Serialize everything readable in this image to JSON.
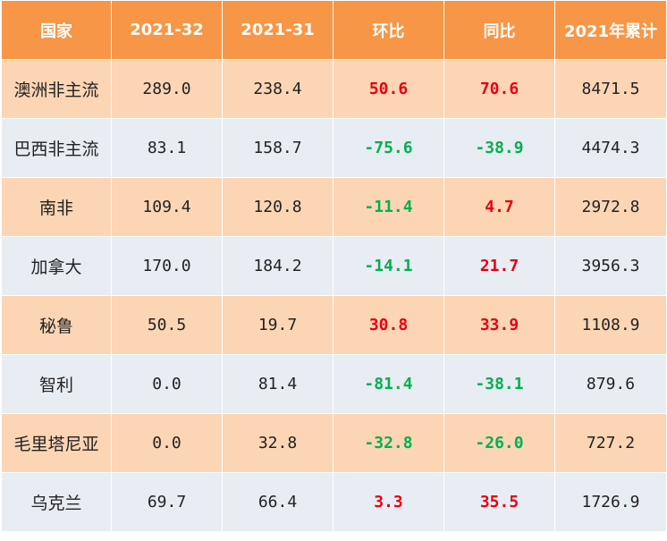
{
  "chart_data": {
    "type": "table",
    "columns": [
      "国家",
      "2021-32",
      "2021-31",
      "环比",
      "同比",
      "2021年累计"
    ],
    "rows": [
      {
        "country": "澳洲非主流",
        "w32": "289.0",
        "w31": "238.4",
        "wow": "50.6",
        "yoy": "70.6",
        "ytd": "8471.5"
      },
      {
        "country": "巴西非主流",
        "w32": "83.1",
        "w31": "158.7",
        "wow": "-75.6",
        "yoy": "-38.9",
        "ytd": "4474.3"
      },
      {
        "country": "南非",
        "w32": "109.4",
        "w31": "120.8",
        "wow": "-11.4",
        "yoy": "4.7",
        "ytd": "2972.8"
      },
      {
        "country": "加拿大",
        "w32": "170.0",
        "w31": "184.2",
        "wow": "-14.1",
        "yoy": "21.7",
        "ytd": "3956.3"
      },
      {
        "country": "秘鲁",
        "w32": "50.5",
        "w31": "19.7",
        "wow": "30.8",
        "yoy": "33.9",
        "ytd": "1108.9"
      },
      {
        "country": "智利",
        "w32": "0.0",
        "w31": "81.4",
        "wow": "-81.4",
        "yoy": "-38.1",
        "ytd": "879.6"
      },
      {
        "country": "毛里塔尼亚",
        "w32": "0.0",
        "w31": "32.8",
        "wow": "-32.8",
        "yoy": "-26.0",
        "ytd": "727.2"
      },
      {
        "country": "乌克兰",
        "w32": "69.7",
        "w31": "66.4",
        "wow": "3.3",
        "yoy": "35.5",
        "ytd": "1726.9"
      }
    ]
  },
  "colors": {
    "header_bg": "#f79646",
    "row_odd_bg": "#fcd5b4",
    "row_even_bg": "#e8ecf3",
    "positive": "#e60012",
    "negative": "#00b050"
  }
}
